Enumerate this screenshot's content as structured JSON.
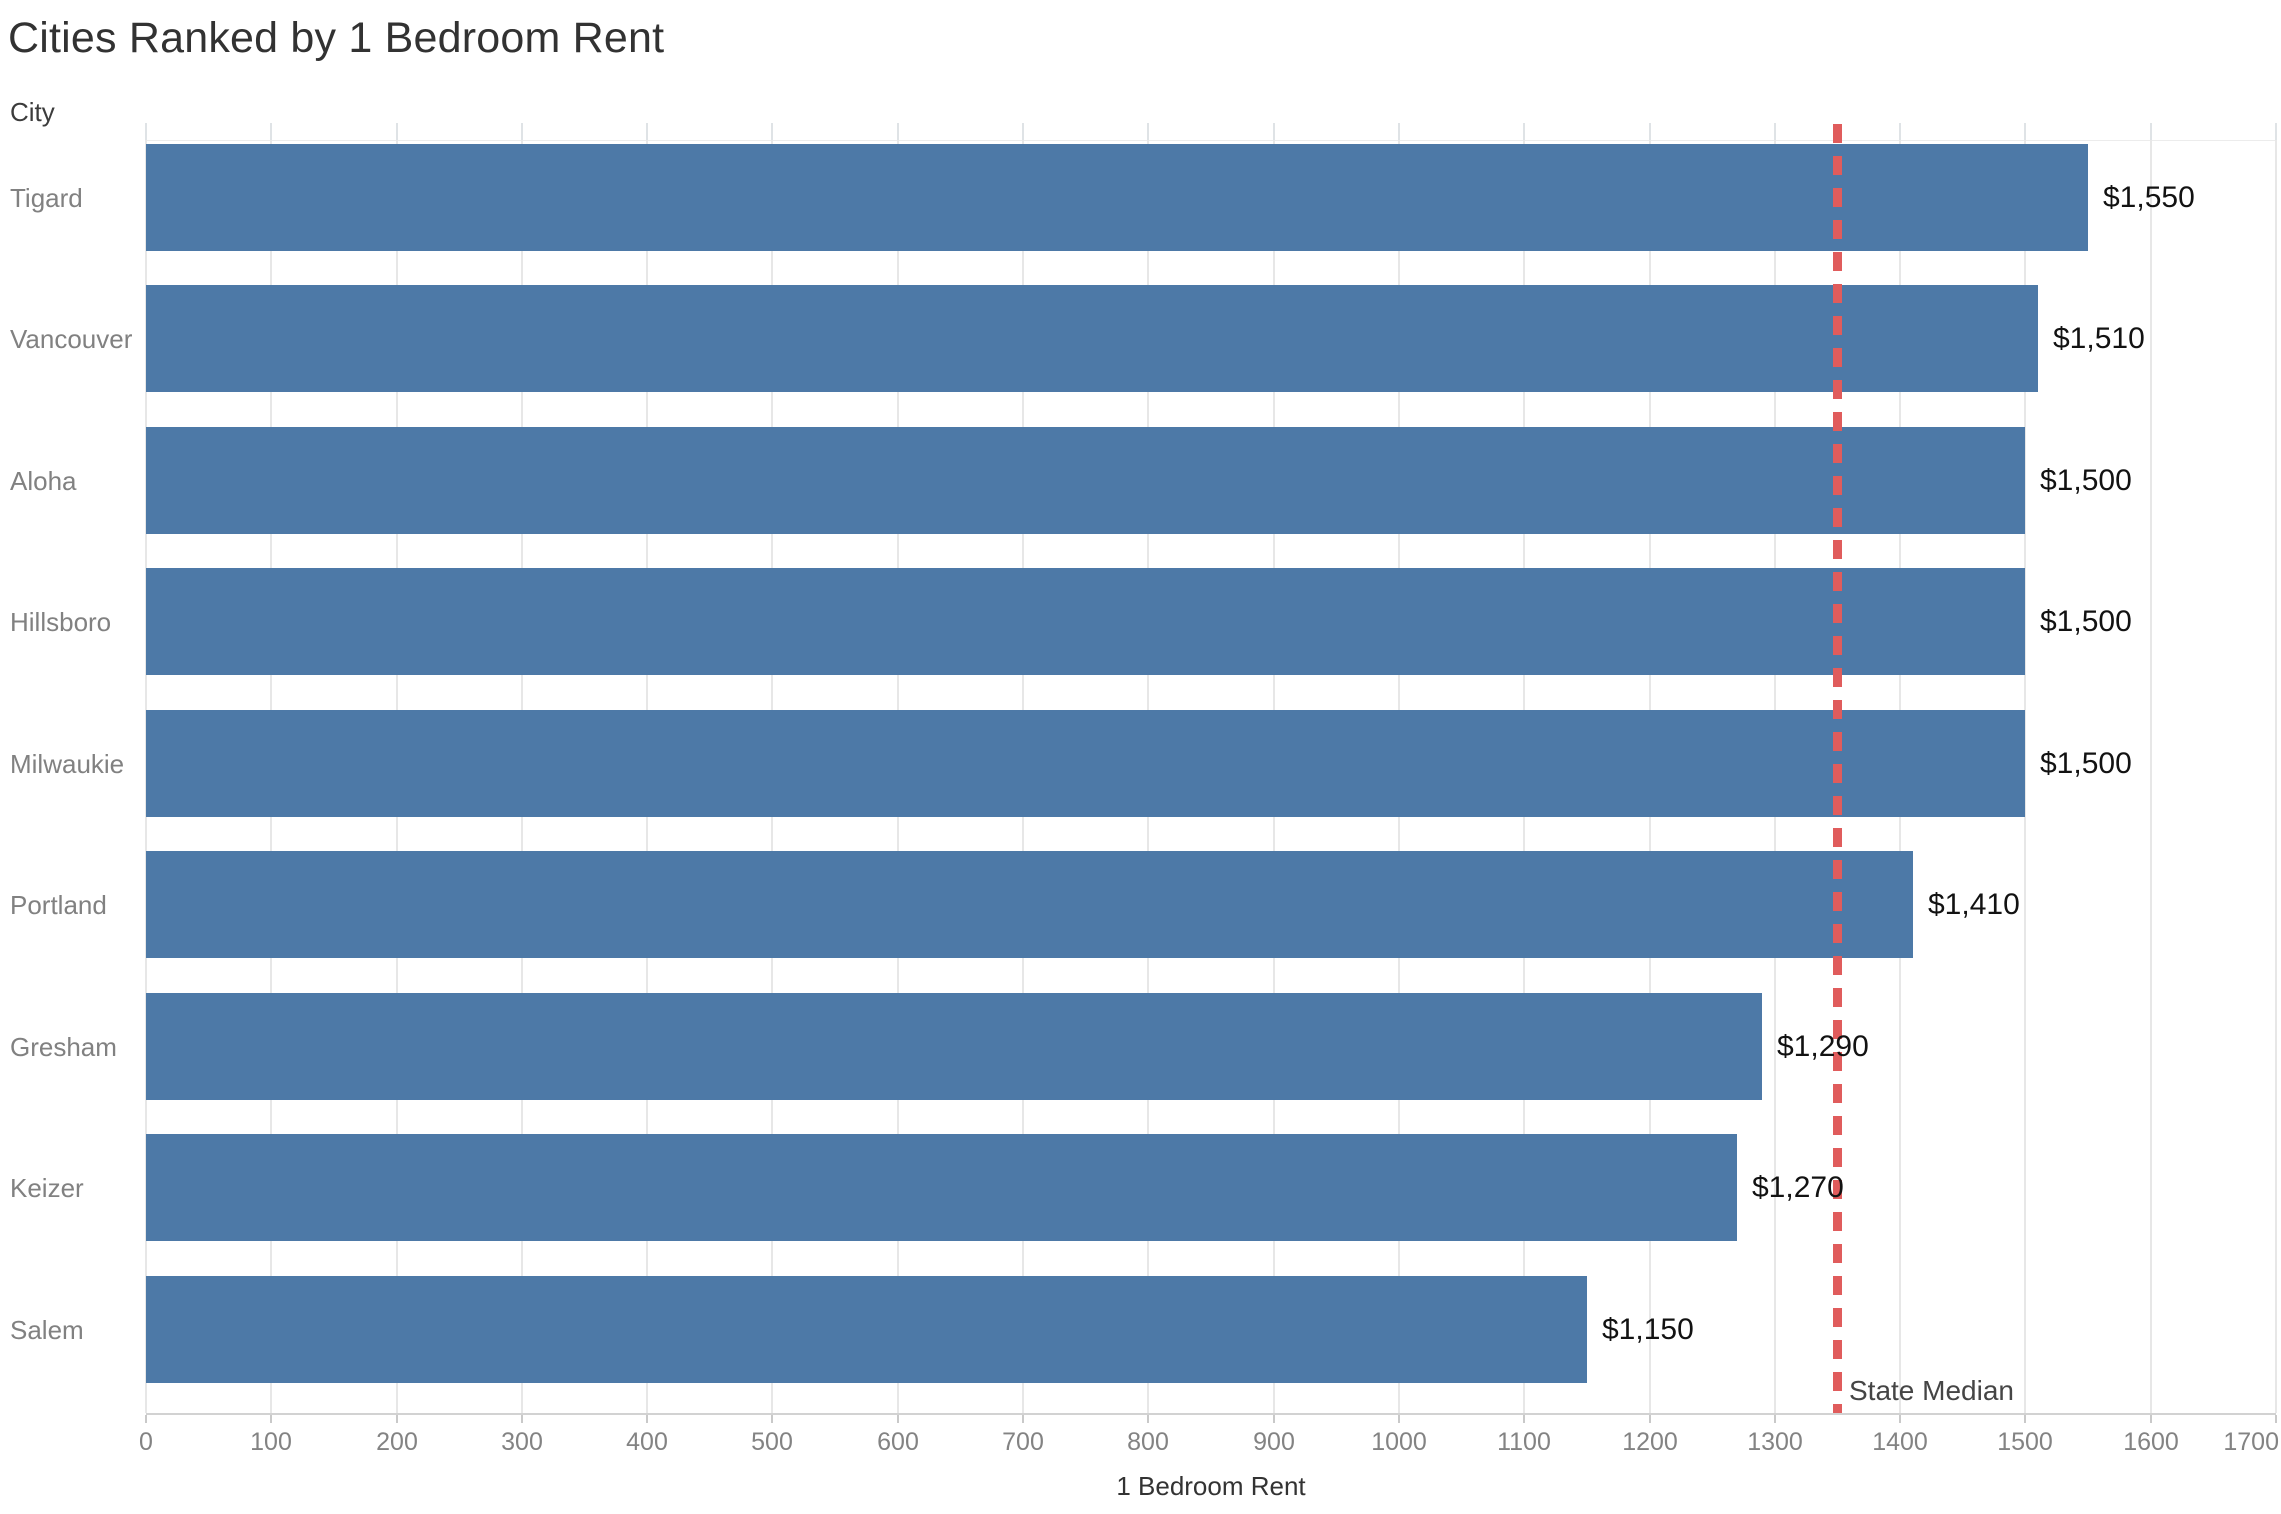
{
  "chart_data": {
    "type": "bar",
    "orientation": "horizontal",
    "title": "Cities Ranked by 1 Bedroom Rent",
    "column_header": "City",
    "xlabel": "1 Bedroom Rent",
    "categories": [
      "Tigard",
      "Vancouver",
      "Aloha",
      "Hillsboro",
      "Milwaukie",
      "Portland",
      "Gresham",
      "Keizer",
      "Salem"
    ],
    "values": [
      1550,
      1510,
      1500,
      1500,
      1500,
      1410,
      1290,
      1270,
      1150
    ],
    "value_labels": [
      "$1,550",
      "$1,510",
      "$1,500",
      "$1,500",
      "$1,500",
      "$1,410",
      "$1,290",
      "$1,270",
      "$1,150"
    ],
    "xlim": [
      0,
      1700
    ],
    "x_ticks": [
      0,
      100,
      200,
      300,
      400,
      500,
      600,
      700,
      800,
      900,
      1000,
      1100,
      1200,
      1300,
      1400,
      1500,
      1600,
      1700
    ],
    "grid": "vertical",
    "legend": "none",
    "bar_color": "#4d79a7",
    "reference_line": {
      "label": "State Median",
      "value": 1350,
      "color": "#e05c5c",
      "style": "dashed"
    }
  }
}
